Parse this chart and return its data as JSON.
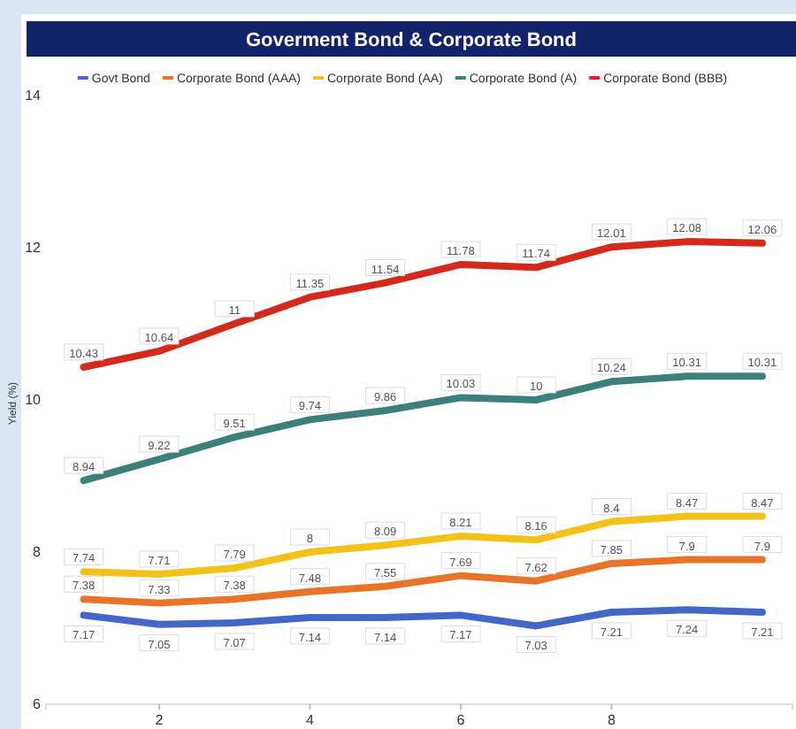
{
  "chart_data": {
    "type": "line",
    "title": "Goverment Bond & Corporate Bond",
    "ylabel": "Yield (%)",
    "x": [
      1,
      2,
      3,
      4,
      5,
      6,
      7,
      8,
      9,
      10
    ],
    "xlim": [
      0.5,
      10.4
    ],
    "xticks": [
      2,
      4,
      6,
      8
    ],
    "ylim": [
      6,
      14
    ],
    "yticks": [
      6,
      8,
      10,
      12,
      14
    ],
    "legend": "top",
    "grid": false,
    "data_labels": true,
    "line_style": "solid",
    "marker": "none",
    "series": [
      {
        "name": "Govt Bond",
        "color": "#4466c8",
        "values": [
          7.17,
          7.05,
          7.07,
          7.14,
          7.14,
          7.17,
          7.03,
          7.21,
          7.24,
          7.21
        ]
      },
      {
        "name": "Corporate Bond (AAA)",
        "color": "#e8742a",
        "values": [
          7.38,
          7.33,
          7.38,
          7.48,
          7.55,
          7.69,
          7.62,
          7.85,
          7.9,
          7.9
        ]
      },
      {
        "name": "Corporate Bond (AA)",
        "color": "#f2c21a",
        "values": [
          7.74,
          7.71,
          7.79,
          8.0,
          8.09,
          8.21,
          8.16,
          8.4,
          8.47,
          8.47
        ]
      },
      {
        "name": "Corporate Bond (A)",
        "color": "#3d7f7a",
        "values": [
          8.94,
          9.22,
          9.51,
          9.74,
          9.86,
          10.03,
          10.0,
          10.24,
          10.31,
          10.31
        ]
      },
      {
        "name": "Corporate Bond (BBB)",
        "color": "#d42a1e",
        "values": [
          10.43,
          10.64,
          11.0,
          11.35,
          11.54,
          11.78,
          11.74,
          12.01,
          12.08,
          12.06
        ]
      }
    ]
  }
}
